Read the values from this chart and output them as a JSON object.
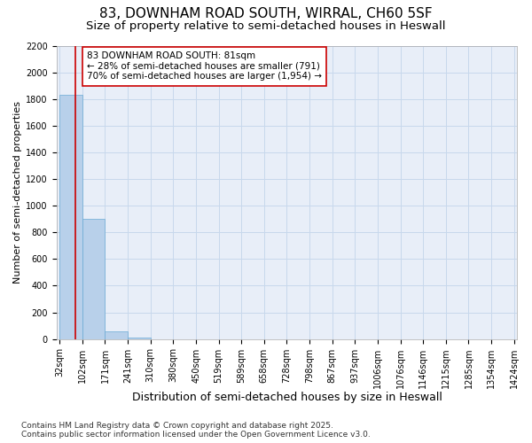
{
  "title1": "83, DOWNHAM ROAD SOUTH, WIRRAL, CH60 5SF",
  "title2": "Size of property relative to semi-detached houses in Heswall",
  "xlabel": "Distribution of semi-detached houses by size in Heswall",
  "ylabel": "Number of semi-detached properties",
  "bin_labels": [
    "32sqm",
    "102sqm",
    "171sqm",
    "241sqm",
    "310sqm",
    "380sqm",
    "450sqm",
    "519sqm",
    "589sqm",
    "658sqm",
    "728sqm",
    "798sqm",
    "867sqm",
    "937sqm",
    "1006sqm",
    "1076sqm",
    "1146sqm",
    "1215sqm",
    "1285sqm",
    "1354sqm",
    "1424sqm"
  ],
  "bin_edges": [
    32,
    102,
    171,
    241,
    310,
    380,
    450,
    519,
    589,
    658,
    728,
    798,
    867,
    937,
    1006,
    1076,
    1146,
    1215,
    1285,
    1354,
    1424
  ],
  "bar_heights": [
    1830,
    900,
    55,
    10,
    0,
    0,
    0,
    0,
    0,
    0,
    0,
    0,
    0,
    0,
    0,
    0,
    0,
    0,
    0,
    0
  ],
  "bar_color": "#b8d0ea",
  "bar_edge_color": "#6aaad4",
  "property_size": 81,
  "vline_color": "#cc0000",
  "annotation_line1": "83 DOWNHAM ROAD SOUTH: 81sqm",
  "annotation_line2": "← 28% of semi-detached houses are smaller (791)",
  "annotation_line3": "70% of semi-detached houses are larger (1,954) →",
  "annotation_box_color": "#cc0000",
  "ylim": [
    0,
    2200
  ],
  "yticks": [
    0,
    200,
    400,
    600,
    800,
    1000,
    1200,
    1400,
    1600,
    1800,
    2000,
    2200
  ],
  "grid_color": "#c8d8ec",
  "bg_color": "#e8eef8",
  "footer": "Contains HM Land Registry data © Crown copyright and database right 2025.\nContains public sector information licensed under the Open Government Licence v3.0.",
  "title1_fontsize": 11,
  "title2_fontsize": 9.5,
  "xlabel_fontsize": 9,
  "ylabel_fontsize": 8,
  "tick_fontsize": 7,
  "annotation_fontsize": 7.5,
  "footer_fontsize": 6.5
}
